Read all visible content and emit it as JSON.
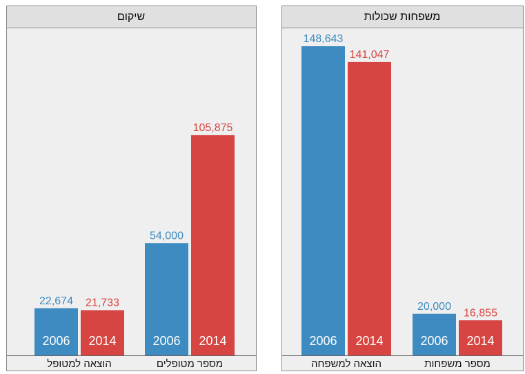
{
  "chart_data": [
    {
      "type": "bar",
      "title": "שיקום",
      "categories": [
        "הוצאה למטופל",
        "מספר מטופלים"
      ],
      "series": [
        {
          "name": "2006",
          "color": "#3d8bc0",
          "values": [
            22674,
            54000
          ],
          "value_labels": [
            "22,674",
            "54,000"
          ]
        },
        {
          "name": "2014",
          "color": "#d64541",
          "values": [
            21733,
            105875
          ],
          "value_labels": [
            "21,733",
            "105,875"
          ]
        }
      ]
    },
    {
      "type": "bar",
      "title": "משפחות שכולות",
      "categories": [
        "הוצאה למשפחה",
        "מספר משפחות"
      ],
      "series": [
        {
          "name": "2006",
          "color": "#3d8bc0",
          "values": [
            148643,
            20000
          ],
          "value_labels": [
            "148,643",
            "20,000"
          ]
        },
        {
          "name": "2014",
          "color": "#d64541",
          "values": [
            141047,
            16855
          ],
          "value_labels": [
            "141,047",
            "16,855"
          ]
        }
      ]
    }
  ]
}
